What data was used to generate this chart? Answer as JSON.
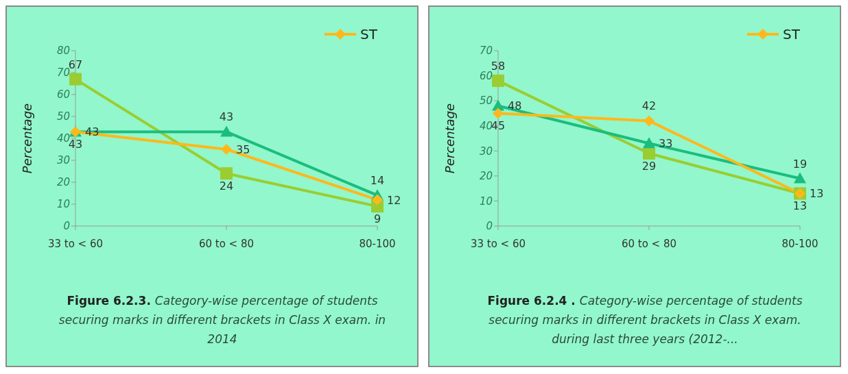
{
  "chart_data": [
    {
      "type": "line",
      "categories": [
        "33 to < 60",
        "60 to < 80",
        "80-100"
      ],
      "ylabel": "Percentage",
      "ylim": [
        0,
        80
      ],
      "yticks": [
        0,
        10,
        20,
        30,
        40,
        50,
        60,
        70,
        80
      ],
      "grid": false,
      "legend": "top right",
      "data_labels": true,
      "annotations": [
        "Figure 6.2.3.",
        "Category-wise percentage of students securing marks in different brackets in Class X exam. in 2014"
      ],
      "series": [
        {
          "name": "ST",
          "color": "#ffb81c",
          "marker": "diamond",
          "values": [
            43,
            35,
            12
          ]
        },
        {
          "color": "#1bbd7e",
          "marker": "triangle",
          "values": [
            43,
            43,
            14
          ]
        },
        {
          "color": "#9acd32",
          "marker": "square",
          "values": [
            67,
            24,
            9
          ]
        }
      ]
    },
    {
      "type": "line",
      "categories": [
        "33 to < 60",
        "60 to < 80",
        "80-100"
      ],
      "ylabel": "Percentage",
      "ylim": [
        0,
        70
      ],
      "yticks": [
        0,
        10,
        20,
        30,
        40,
        50,
        60,
        70
      ],
      "grid": false,
      "legend": "top right",
      "data_labels": true,
      "annotations": [
        "Figure 6.2.4 .",
        "Category-wise percentage of students securing marks in different brackets in Class X exam. during last three years (2012-..."
      ],
      "series": [
        {
          "name": "ST",
          "color": "#ffb81c",
          "marker": "diamond",
          "values": [
            45,
            42,
            13
          ]
        },
        {
          "color": "#1bbd7e",
          "marker": "triangle",
          "values": [
            48,
            33,
            19
          ]
        },
        {
          "color": "#9acd32",
          "marker": "square",
          "values": [
            58,
            29,
            13
          ]
        }
      ]
    }
  ]
}
